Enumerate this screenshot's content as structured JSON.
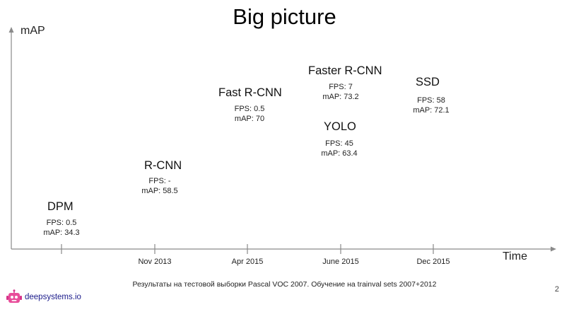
{
  "title": "Big picture",
  "axes": {
    "y_label": "mAP",
    "x_label": "Time"
  },
  "ticks": [
    "",
    "Nov 2013",
    "Apr 2015",
    "June 2015",
    "Dec 2015"
  ],
  "models": [
    {
      "name": "DPM",
      "fps": "FPS: 0.5",
      "map": "mAP: 34.3"
    },
    {
      "name": "R-CNN",
      "fps": "FPS: -",
      "map": "mAP: 58.5"
    },
    {
      "name": "Fast R-CNN",
      "fps": "FPS: 0.5",
      "map": "mAP: 70"
    },
    {
      "name": "Faster R-CNN",
      "fps": "FPS: 7",
      "map": "mAP: 73.2"
    },
    {
      "name": "YOLO",
      "fps": "FPS: 45",
      "map": "mAP: 63.4"
    },
    {
      "name": "SSD",
      "fps": "FPS: 58",
      "map": "mAP: 72.1"
    }
  ],
  "footnote": "Результаты на тестовой выборки Pascal VOC 2007. Обучение на trainval sets 2007+2012",
  "page_number": "2",
  "logo_text": "deepsystems.io",
  "colors": {
    "axis": "#8a8a8a",
    "logo_accent": "#d6338a"
  }
}
